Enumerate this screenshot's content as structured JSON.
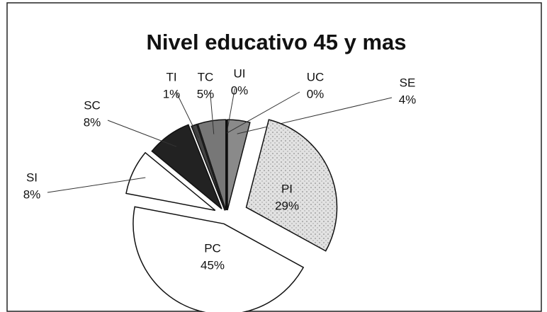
{
  "chart_data": {
    "type": "pie",
    "title": "Nivel educativo 45 y mas",
    "categories": [
      "SE",
      "PI",
      "PC",
      "SI",
      "SC",
      "TI",
      "TC",
      "UI",
      "UC"
    ],
    "values": [
      4,
      29,
      45,
      8,
      8,
      1,
      5,
      0,
      0
    ],
    "value_labels": [
      "4%",
      "29%",
      "45%",
      "8%",
      "8%",
      "1%",
      "5%",
      "0%",
      "0%"
    ],
    "colors": [
      "#8a8a8a",
      "#d4d4d4",
      "#ffffff",
      "#ffffff",
      "#222222",
      "#444444",
      "#777777",
      "#333333",
      "#555555"
    ]
  }
}
